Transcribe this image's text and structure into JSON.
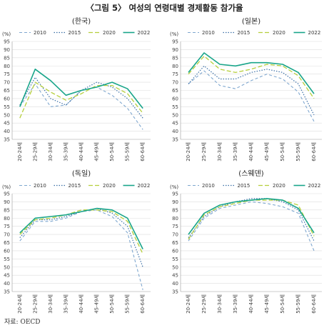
{
  "figure_title": "〈그림 5〉 여성의 연령대별 경제활동 참가율",
  "source": "자료: OECD",
  "colors": {
    "2010": "#7fa7cf",
    "2015": "#3b6fa6",
    "2020": "#b6cf3c",
    "2022": "#19a58a",
    "grid": "#dddddd",
    "axis": "#999999"
  },
  "chart_data": [
    {
      "type": "line",
      "title": "(한국)",
      "unit_label": "(%)",
      "categories": [
        "20-24세",
        "25-29세",
        "30-34세",
        "35-39세",
        "40-44세",
        "45-49세",
        "50-54세",
        "55-59세",
        "60-64세"
      ],
      "yticks": [
        35,
        40,
        45,
        50,
        55,
        60,
        65,
        70,
        75,
        80,
        85,
        90,
        95
      ],
      "ylim": [
        35,
        95
      ],
      "series": [
        {
          "name": "2010",
          "values": [
            55,
            69,
            55,
            56,
            65,
            67,
            62,
            54,
            41
          ]
        },
        {
          "name": "2015",
          "values": [
            56,
            73,
            60,
            56,
            65,
            70,
            67,
            60,
            48
          ]
        },
        {
          "name": "2020",
          "values": [
            48,
            70,
            64,
            59,
            63,
            68,
            68,
            63,
            51
          ]
        },
        {
          "name": "2022",
          "values": [
            55,
            78,
            71,
            62,
            65,
            67,
            70,
            66,
            54
          ]
        }
      ]
    },
    {
      "type": "line",
      "title": "(일본)",
      "unit_label": "(%)",
      "categories": [
        "20-24세",
        "25-29세",
        "30-34세",
        "35-39세",
        "40-44세",
        "45-49세",
        "50-54세",
        "55-59세",
        "60-64세"
      ],
      "yticks": [
        35,
        40,
        45,
        50,
        55,
        60,
        65,
        70,
        75,
        80,
        85,
        90,
        95
      ],
      "ylim": [
        35,
        95
      ],
      "series": [
        {
          "name": "2010",
          "values": [
            69,
            77,
            68,
            66,
            71,
            75,
            72,
            64,
            46
          ]
        },
        {
          "name": "2015",
          "values": [
            69,
            80,
            72,
            72,
            76,
            78,
            76,
            69,
            50
          ]
        },
        {
          "name": "2020",
          "values": [
            75,
            86,
            78,
            76,
            78,
            81,
            80,
            74,
            60
          ]
        },
        {
          "name": "2022",
          "values": [
            76,
            88,
            81,
            80,
            82,
            82,
            81,
            76,
            63
          ]
        }
      ]
    },
    {
      "type": "line",
      "title": "(독일)",
      "unit_label": "(%)",
      "categories": [
        "20-24세",
        "25-29세",
        "30-34세",
        "35-39세",
        "40-44세",
        "45-49세",
        "50-54세",
        "55-59세",
        "60-64세"
      ],
      "yticks": [
        35,
        40,
        45,
        50,
        55,
        60,
        65,
        70,
        75,
        80,
        85,
        90,
        95
      ],
      "ylim": [
        35,
        95
      ],
      "series": [
        {
          "name": "2010",
          "values": [
            66,
            78,
            78,
            80,
            84,
            85,
            81,
            71,
            36
          ]
        },
        {
          "name": "2015",
          "values": [
            68,
            79,
            79,
            81,
            84,
            86,
            83,
            75,
            50
          ]
        },
        {
          "name": "2020",
          "values": [
            70,
            79,
            80,
            82,
            85,
            85,
            84,
            78,
            58
          ]
        },
        {
          "name": "2022",
          "values": [
            71,
            80,
            81,
            82,
            84,
            86,
            85,
            80,
            61
          ]
        }
      ]
    },
    {
      "type": "line",
      "title": "(스웨덴)",
      "unit_label": "(%)",
      "categories": [
        "20-24세",
        "25-29세",
        "30-34세",
        "35-39세",
        "40-44세",
        "45-49세",
        "50-54세",
        "55-59세",
        "60-64세"
      ],
      "yticks": [
        35,
        40,
        45,
        50,
        55,
        60,
        65,
        70,
        75,
        80,
        85,
        90,
        95
      ],
      "ylim": [
        35,
        95
      ],
      "series": [
        {
          "name": "2010",
          "values": [
            66,
            80,
            86,
            88,
            90,
            89,
            87,
            83,
            60
          ]
        },
        {
          "name": "2015",
          "values": [
            68,
            81,
            87,
            90,
            92,
            92,
            90,
            85,
            66
          ]
        },
        {
          "name": "2020",
          "values": [
            67,
            82,
            87,
            89,
            91,
            91,
            91,
            88,
            69
          ]
        },
        {
          "name": "2022",
          "values": [
            70,
            83,
            88,
            90,
            91,
            92,
            91,
            86,
            71
          ]
        }
      ]
    }
  ]
}
